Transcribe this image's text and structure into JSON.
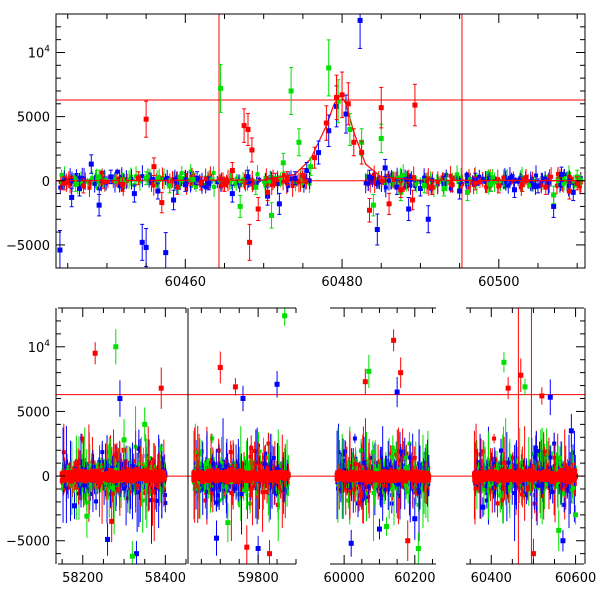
{
  "chart_data": [
    {
      "type": "scatter",
      "panel": "top",
      "xlim": [
        60443.5,
        60511
      ],
      "ylim": [
        -6800,
        13000
      ],
      "x_ticks": [
        {
          "value": 60460,
          "label": "60460"
        },
        {
          "value": 60480,
          "label": "60480"
        },
        {
          "value": 60500,
          "label": "60500"
        }
      ],
      "y_ticks": [
        {
          "value": -5000,
          "label": "−5000"
        },
        {
          "value": 0,
          "label": "0"
        },
        {
          "value": 5000,
          "label": "5000"
        },
        {
          "value": 10000,
          "label": "10",
          "sup": "4"
        }
      ],
      "reference_lines": {
        "horizontal": [
          0,
          6300
        ],
        "vertical": [
          60464.3,
          60495.3
        ],
        "color": "#ff0000"
      },
      "model_curve": {
        "color": "#ff0000",
        "peak_x": 60479.8,
        "peak_y": 6700,
        "points": [
          [
            60443.5,
            0
          ],
          [
            60470,
            60
          ],
          [
            60474,
            500
          ],
          [
            60476,
            1700
          ],
          [
            60478,
            4300
          ],
          [
            60479,
            6000
          ],
          [
            60479.8,
            6700
          ],
          [
            60480.5,
            6000
          ],
          [
            60481.5,
            3800
          ],
          [
            60483,
            1300
          ],
          [
            60485,
            300
          ],
          [
            60490,
            40
          ],
          [
            60511,
            0
          ]
        ]
      },
      "series": [
        {
          "color": "#0000ff",
          "points": [
            [
              60444,
              -5400
            ],
            [
              60445.5,
              -1300
            ],
            [
              60446.5,
              -600
            ],
            [
              60448,
              1300
            ],
            [
              60449,
              -1900
            ],
            [
              60450.5,
              300
            ],
            [
              60452,
              -200
            ],
            [
              60453.5,
              -1000
            ],
            [
              60454.5,
              -4800
            ],
            [
              60455,
              -5200
            ],
            [
              60456.5,
              -800
            ],
            [
              60457.5,
              -5600
            ],
            [
              60458.5,
              -1500
            ],
            [
              60460,
              -300
            ],
            [
              60461.5,
              200
            ],
            [
              60463,
              -200
            ],
            [
              60466,
              -1000
            ],
            [
              60468,
              300
            ],
            [
              60470.5,
              -1200
            ],
            [
              60472,
              -1800
            ],
            [
              60474,
              200
            ],
            [
              60475.5,
              800
            ],
            [
              60477,
              2200
            ],
            [
              60478.3,
              3900
            ],
            [
              60479.3,
              5800
            ],
            [
              60480.5,
              5200
            ],
            [
              60482.3,
              12500
            ],
            [
              60483.5,
              300
            ],
            [
              60484.5,
              -3800
            ],
            [
              60485.5,
              1000
            ],
            [
              60487,
              -500
            ],
            [
              60488.5,
              -2200
            ],
            [
              60490,
              -600
            ],
            [
              60491,
              -3000
            ],
            [
              60493,
              -200
            ],
            [
              60495,
              -800
            ],
            [
              60497,
              100
            ],
            [
              60499,
              -300
            ],
            [
              60502,
              -700
            ],
            [
              60505,
              -400
            ],
            [
              60507,
              -2000
            ],
            [
              60508,
              500
            ],
            [
              60509.5,
              -900
            ]
          ]
        },
        {
          "color": "#00e000",
          "points": [
            [
              60446,
              -300
            ],
            [
              60449,
              300
            ],
            [
              60452,
              100
            ],
            [
              60455,
              200
            ],
            [
              60458,
              -400
            ],
            [
              60461,
              100
            ],
            [
              60464.5,
              7200
            ],
            [
              60467,
              -2000
            ],
            [
              60469,
              -500
            ],
            [
              60471,
              -2700
            ],
            [
              60472.5,
              1400
            ],
            [
              60473.5,
              7000
            ],
            [
              60474.5,
              3000
            ],
            [
              60476,
              1100
            ],
            [
              60478.3,
              8800
            ],
            [
              60479.5,
              6200
            ],
            [
              60481,
              4000
            ],
            [
              60482.5,
              3000
            ],
            [
              60484,
              -1900
            ],
            [
              60485,
              3300
            ],
            [
              60487.5,
              -900
            ],
            [
              60490.5,
              -400
            ],
            [
              60493,
              -600
            ],
            [
              60496,
              -900
            ],
            [
              60499,
              -300
            ],
            [
              60503,
              -300
            ],
            [
              60507,
              -1100
            ],
            [
              60510,
              300
            ]
          ]
        },
        {
          "color": "#ff0000",
          "points": [
            [
              60444.5,
              -200
            ],
            [
              60447,
              -400
            ],
            [
              60449.5,
              -100
            ],
            [
              60452,
              -300
            ],
            [
              60454,
              200
            ],
            [
              60455,
              4800
            ],
            [
              60456,
              1100
            ],
            [
              60457,
              -1700
            ],
            [
              60459,
              -500
            ],
            [
              60462,
              -200
            ],
            [
              60465,
              -300
            ],
            [
              60466,
              800
            ],
            [
              60467.5,
              4300
            ],
            [
              60468,
              4000
            ],
            [
              60468.2,
              -4800
            ],
            [
              60468.5,
              2400
            ],
            [
              60469.3,
              -2200
            ],
            [
              60470.5,
              -900
            ],
            [
              60471.5,
              100
            ],
            [
              60473,
              200
            ],
            [
              60475,
              400
            ],
            [
              60476.5,
              1800
            ],
            [
              60478,
              4500
            ],
            [
              60479.3,
              6500
            ],
            [
              60480,
              6700
            ],
            [
              60480.8,
              6000
            ],
            [
              60481.5,
              3000
            ],
            [
              60482.5,
              2200
            ],
            [
              60483.5,
              -2300
            ],
            [
              60485,
              5700
            ],
            [
              60486,
              -1800
            ],
            [
              60487.5,
              -700
            ],
            [
              60489,
              -1500
            ],
            [
              60489.3,
              5900
            ],
            [
              60491.5,
              -500
            ],
            [
              60494,
              -300
            ],
            [
              60497,
              -200
            ],
            [
              60500,
              -400
            ],
            [
              60503,
              -300
            ],
            [
              60506,
              -500
            ],
            [
              60509,
              -800
            ],
            [
              60510,
              -200
            ]
          ]
        }
      ]
    },
    {
      "type": "scatter",
      "panel": "bottom",
      "ylim": [
        -6800,
        13000
      ],
      "x_segments": [
        {
          "xlim": [
            58140,
            58450
          ],
          "ticks": [
            {
              "value": 58200,
              "label": "58200"
            },
            {
              "value": 58400,
              "label": "58400"
            }
          ]
        },
        {
          "xlim": [
            59620,
            59900
          ],
          "ticks": [
            {
              "value": 59800,
              "label": "59800"
            }
          ]
        },
        {
          "xlim": [
            59960,
            60260
          ],
          "ticks": [
            {
              "value": 60000,
              "label": "60000"
            },
            {
              "value": 60200,
              "label": "60200"
            }
          ]
        },
        {
          "xlim": [
            60340,
            60620
          ],
          "ticks": [
            {
              "value": 60400,
              "label": "60400"
            },
            {
              "value": 60600,
              "label": "60600"
            }
          ]
        }
      ],
      "y_ticks": [
        {
          "value": -5000,
          "label": "−5000"
        },
        {
          "value": 0,
          "label": "0"
        },
        {
          "value": 5000,
          "label": "5000"
        },
        {
          "value": 10000,
          "label": "10",
          "sup": "4"
        }
      ],
      "reference_lines": {
        "horizontal": [
          0,
          6300
        ],
        "vertical": [
          60464.3,
          60495.3
        ],
        "color": "#ff0000"
      },
      "seasons": [
        {
          "x_range": [
            58150,
            58400
          ]
        },
        {
          "x_range": [
            59630,
            59880
          ]
        },
        {
          "x_range": [
            59980,
            60240
          ]
        },
        {
          "x_range": [
            60360,
            60600
          ]
        }
      ],
      "outliers": [
        {
          "color": "#ff0000",
          "points": [
            [
              58230,
              9500
            ],
            [
              58270,
              -3500
            ],
            [
              58390,
              6800
            ],
            [
              58300,
              2000
            ],
            [
              59700,
              8400
            ],
            [
              59740,
              6900
            ],
            [
              59770,
              -5500
            ],
            [
              59830,
              -6000
            ],
            [
              60060,
              7300
            ],
            [
              60140,
              10500
            ],
            [
              60160,
              8000
            ],
            [
              60180,
              -5000
            ],
            [
              60440,
              6800
            ],
            [
              60470,
              7800
            ],
            [
              60520,
              6200
            ],
            [
              60500,
              -6000
            ]
          ]
        },
        {
          "color": "#0000ff",
          "points": [
            [
              58180,
              -2300
            ],
            [
              58260,
              -4900
            ],
            [
              58290,
              6000
            ],
            [
              58330,
              -6000
            ],
            [
              59690,
              -4800
            ],
            [
              59760,
              6000
            ],
            [
              59800,
              -5600
            ],
            [
              59850,
              7100
            ],
            [
              60020,
              -5200
            ],
            [
              60100,
              -4100
            ],
            [
              60150,
              6500
            ],
            [
              60200,
              -3300
            ],
            [
              60380,
              -2400
            ],
            [
              60540,
              6100
            ],
            [
              60570,
              -5000
            ],
            [
              60590,
              3500
            ]
          ]
        },
        {
          "color": "#00e000",
          "points": [
            [
              58210,
              -3100
            ],
            [
              58280,
              10000
            ],
            [
              58300,
              2800
            ],
            [
              58350,
              4000
            ],
            [
              58320,
              -6200
            ],
            [
              59870,
              12400
            ],
            [
              59720,
              -3600
            ],
            [
              60070,
              8100
            ],
            [
              60120,
              -3900
            ],
            [
              60210,
              -5600
            ],
            [
              60430,
              8800
            ],
            [
              60480,
              6900
            ],
            [
              60560,
              -4200
            ],
            [
              60600,
              -3000
            ]
          ]
        }
      ]
    }
  ]
}
